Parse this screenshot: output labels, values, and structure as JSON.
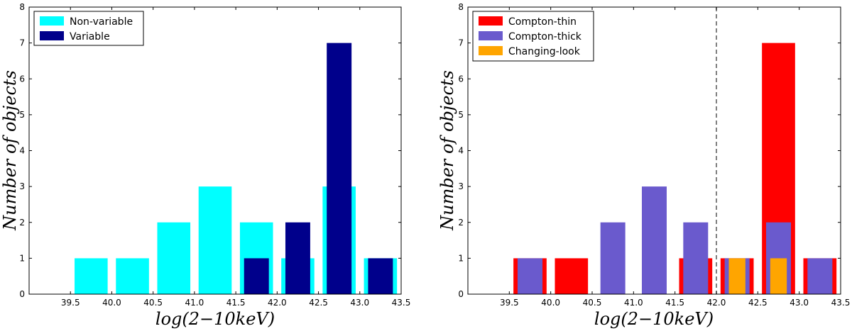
{
  "chart_data": [
    {
      "type": "bar",
      "xlabel": "log(2−10keV)",
      "ylabel": "Number of objects",
      "xlim": [
        39.0,
        43.5
      ],
      "ylim": [
        0,
        8
      ],
      "xticks": [
        "39.5",
        "40.0",
        "40.5",
        "41.0",
        "41.5",
        "42.0",
        "42.5",
        "43.0",
        "43.5"
      ],
      "yticks": [
        "0",
        "1",
        "2",
        "3",
        "4",
        "5",
        "6",
        "7",
        "8"
      ],
      "legend_position": "top-left",
      "series": [
        {
          "name": "Non-variable",
          "color": "#00ffff",
          "bars": [
            {
              "left": 39.55,
              "right": 39.95,
              "value": 1
            },
            {
              "left": 40.05,
              "right": 40.45,
              "value": 1
            },
            {
              "left": 40.55,
              "right": 40.95,
              "value": 2
            },
            {
              "left": 41.05,
              "right": 41.45,
              "value": 3
            },
            {
              "left": 41.55,
              "right": 41.95,
              "value": 2
            },
            {
              "left": 42.05,
              "right": 42.45,
              "value": 1
            },
            {
              "left": 42.55,
              "right": 42.95,
              "value": 3
            },
            {
              "left": 43.05,
              "right": 43.45,
              "value": 1
            }
          ]
        },
        {
          "name": "Variable",
          "color": "#00008b",
          "bars": [
            {
              "left": 41.6,
              "right": 41.9,
              "value": 1
            },
            {
              "left": 42.1,
              "right": 42.4,
              "value": 2
            },
            {
              "left": 42.6,
              "right": 42.9,
              "value": 7
            },
            {
              "left": 43.1,
              "right": 43.4,
              "value": 1
            }
          ]
        }
      ]
    },
    {
      "type": "bar",
      "xlabel": "log(2−10keV)",
      "ylabel": "Number of objects",
      "xlim": [
        39.0,
        43.5
      ],
      "ylim": [
        0,
        8
      ],
      "xticks": [
        "39.5",
        "40.0",
        "40.5",
        "41.0",
        "41.5",
        "42.0",
        "42.5",
        "43.0",
        "43.5"
      ],
      "yticks": [
        "0",
        "1",
        "2",
        "3",
        "4",
        "5",
        "6",
        "7",
        "8"
      ],
      "legend_position": "top-left",
      "vline": 42.0,
      "series": [
        {
          "name": "Compton-thin",
          "color": "#ff0000",
          "bars": [
            {
              "left": 39.55,
              "right": 39.95,
              "value": 1
            },
            {
              "left": 40.05,
              "right": 40.45,
              "value": 1
            },
            {
              "left": 41.55,
              "right": 41.95,
              "value": 1
            },
            {
              "left": 42.05,
              "right": 42.45,
              "value": 1
            },
            {
              "left": 42.55,
              "right": 42.95,
              "value": 7
            },
            {
              "left": 43.05,
              "right": 43.45,
              "value": 1
            }
          ]
        },
        {
          "name": "Compton-thick",
          "color": "#6a5acd",
          "bars": [
            {
              "left": 39.6,
              "right": 39.9,
              "value": 1
            },
            {
              "left": 40.6,
              "right": 40.9,
              "value": 2
            },
            {
              "left": 41.1,
              "right": 41.4,
              "value": 3
            },
            {
              "left": 41.6,
              "right": 41.9,
              "value": 2
            },
            {
              "left": 42.1,
              "right": 42.4,
              "value": 1
            },
            {
              "left": 42.6,
              "right": 42.9,
              "value": 2
            },
            {
              "left": 43.1,
              "right": 43.4,
              "value": 1
            }
          ]
        },
        {
          "name": "Changing-look",
          "color": "#ffa500",
          "bars": [
            {
              "left": 42.15,
              "right": 42.35,
              "value": 1
            },
            {
              "left": 42.65,
              "right": 42.85,
              "value": 1
            }
          ]
        }
      ]
    }
  ]
}
